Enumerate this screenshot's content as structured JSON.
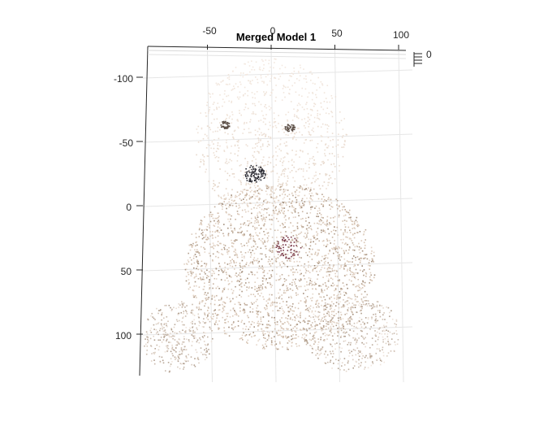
{
  "chart_data": {
    "type": "scatter",
    "title": "Merged Model 1",
    "description_kind": "3D point cloud",
    "x_axis": {
      "label": "",
      "ticks": [
        -50,
        0,
        50,
        100
      ],
      "range": [
        -100,
        110
      ]
    },
    "y_axis": {
      "label": "",
      "ticks": [
        -100,
        -50,
        0,
        50,
        100
      ],
      "range": [
        -125,
        130
      ],
      "reversed": true
    },
    "z_axis": {
      "label": "",
      "ticks": [
        0
      ]
    },
    "grid": true,
    "legend": "none",
    "colors": {
      "light": "#f3e8df",
      "mid": "#d3bfad",
      "dark": "#8f7a66",
      "nose": "#2b2b33",
      "eyes": "#5a4d44",
      "accent": "#7a3a4a"
    },
    "regions": [
      {
        "name": "head",
        "cx": -2,
        "cy": -55,
        "rx": 60,
        "ry": 62
      },
      {
        "name": "body",
        "cx": 5,
        "cy": 45,
        "rx": 75,
        "ry": 65
      },
      {
        "name": "left-paw",
        "cx": -75,
        "cy": 100,
        "rx": 28,
        "ry": 28
      },
      {
        "name": "right-paw",
        "cx": 62,
        "cy": 97,
        "rx": 38,
        "ry": 30
      },
      {
        "name": "eye-left",
        "cx": -38,
        "cy": -65,
        "rx": 4,
        "ry": 3
      },
      {
        "name": "eye-right",
        "cx": 13,
        "cy": -63,
        "rx": 4,
        "ry": 3
      },
      {
        "name": "nose",
        "cx": -15,
        "cy": -27,
        "rx": 9,
        "ry": 7
      }
    ]
  }
}
